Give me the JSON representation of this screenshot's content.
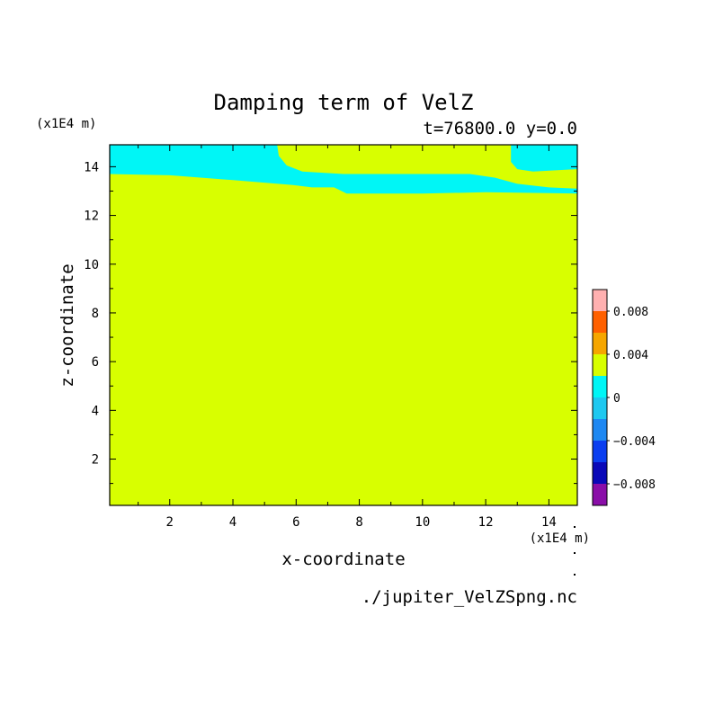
{
  "chart_data": {
    "type": "heatmap",
    "title": "Damping term of VelZ",
    "subtitle": "t=76800.0 y=0.0",
    "xlabel": "x-coordinate",
    "ylabel": "z-coordinate",
    "x_unit": "(x1E4 m)",
    "y_unit": "(x1E4 m)",
    "source_file": "./jupiter_VelZSpng.nc",
    "xlim": [
      0.1,
      14.9
    ],
    "ylim": [
      0.1,
      14.9
    ],
    "x_ticks": [
      2,
      4,
      6,
      8,
      10,
      12,
      14
    ],
    "y_ticks": [
      2,
      4,
      6,
      8,
      10,
      12,
      14
    ],
    "colorbar": {
      "levels": [
        -0.01,
        -0.008,
        -0.006,
        -0.004,
        -0.002,
        0,
        0.002,
        0.004,
        0.006,
        0.008,
        0.01
      ],
      "colors": [
        "#8a0ea8",
        "#0a08b8",
        "#0a3ef0",
        "#1e88f2",
        "#1ec8f0",
        "#00f6f6",
        "#d8ff00",
        "#f6a600",
        "#ff6000",
        "#f00a0a",
        "#ffb0b0"
      ],
      "tick_values": [
        0.008,
        0.004,
        0,
        -0.004,
        -0.008
      ],
      "tick_labels": [
        "0.008",
        "0.004",
        "0",
        "−0.004",
        "−0.008"
      ]
    },
    "background_level": "0 to 0.002",
    "regions": [
      {
        "level": "-0.002 to 0",
        "color": "#00f6f6",
        "boundary": [
          [
            0.1,
            14.9
          ],
          [
            5.4,
            14.9
          ],
          [
            5.45,
            14.45
          ],
          [
            5.7,
            14.05
          ],
          [
            6.2,
            13.8
          ],
          [
            7.5,
            13.7
          ],
          [
            11.5,
            13.7
          ],
          [
            12.3,
            13.55
          ],
          [
            13.0,
            13.3
          ],
          [
            14.0,
            13.15
          ],
          [
            14.9,
            13.1
          ],
          [
            14.9,
            12.9
          ],
          [
            12.0,
            12.95
          ],
          [
            10.0,
            12.9
          ],
          [
            8.0,
            12.9
          ],
          [
            7.6,
            12.9
          ],
          [
            7.2,
            13.15
          ],
          [
            6.5,
            13.15
          ],
          [
            5.9,
            13.25
          ],
          [
            4.0,
            13.45
          ],
          [
            2.0,
            13.65
          ],
          [
            0.1,
            13.7
          ]
        ]
      },
      {
        "level": "-0.002 to 0",
        "color": "#00f6f6",
        "boundary": [
          [
            12.8,
            14.9
          ],
          [
            14.9,
            14.9
          ],
          [
            14.9,
            13.9
          ],
          [
            13.5,
            13.8
          ],
          [
            13.0,
            13.9
          ],
          [
            12.8,
            14.2
          ]
        ]
      }
    ]
  }
}
